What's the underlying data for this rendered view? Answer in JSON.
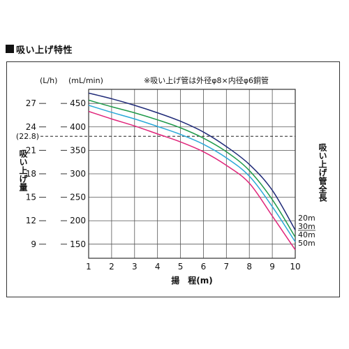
{
  "section_title": "■吸い上げ特性",
  "chart_data": {
    "type": "line",
    "note": "※吸い上げ管は外径φ8×内径φ6銅管",
    "xlabel": "揚　程(m)",
    "ylabel": "吸い上げ量",
    "y_unit_left": "(L/h)",
    "y_unit_right": "(mL/min)",
    "right_label": "吸い上げ管全長",
    "x": [
      1,
      2,
      3,
      4,
      5,
      6,
      7,
      8,
      9,
      10
    ],
    "xlim": [
      1,
      10
    ],
    "ylim_ml": [
      120,
      480
    ],
    "y_ticks_ml": [
      150,
      200,
      250,
      300,
      350,
      400,
      450
    ],
    "y_ticks_lh": [
      "9",
      "12",
      "15",
      "18",
      "21",
      "24",
      "27"
    ],
    "y_ticks_lh_values": [
      9,
      12,
      15,
      18,
      21,
      24,
      27
    ],
    "reference_line": {
      "label": "(22.8)",
      "value_lh": 22.8,
      "value_ml": 380
    },
    "grid": true,
    "colors": {
      "20m": "#1f2a78",
      "30m": "#1f9a4a",
      "40m": "#29a8d8",
      "50m": "#e0247a",
      "ref": "#222222"
    },
    "series": [
      {
        "name": "20m",
        "color": "#1f2a78",
        "values": [
          472,
          460,
          446,
          430,
          412,
          389,
          358,
          320,
          265,
          180
        ]
      },
      {
        "name": "30m",
        "color": "#1f9a4a",
        "values": [
          457,
          443,
          430,
          415,
          398,
          376,
          347,
          307,
          245,
          165
        ]
      },
      {
        "name": "40m",
        "color": "#29a8d8",
        "values": [
          446,
          431,
          417,
          401,
          384,
          363,
          334,
          295,
          230,
          155
        ]
      },
      {
        "name": "50m",
        "color": "#e0247a",
        "values": [
          433,
          417,
          402,
          385,
          368,
          347,
          318,
          280,
          210,
          138
        ]
      }
    ]
  }
}
